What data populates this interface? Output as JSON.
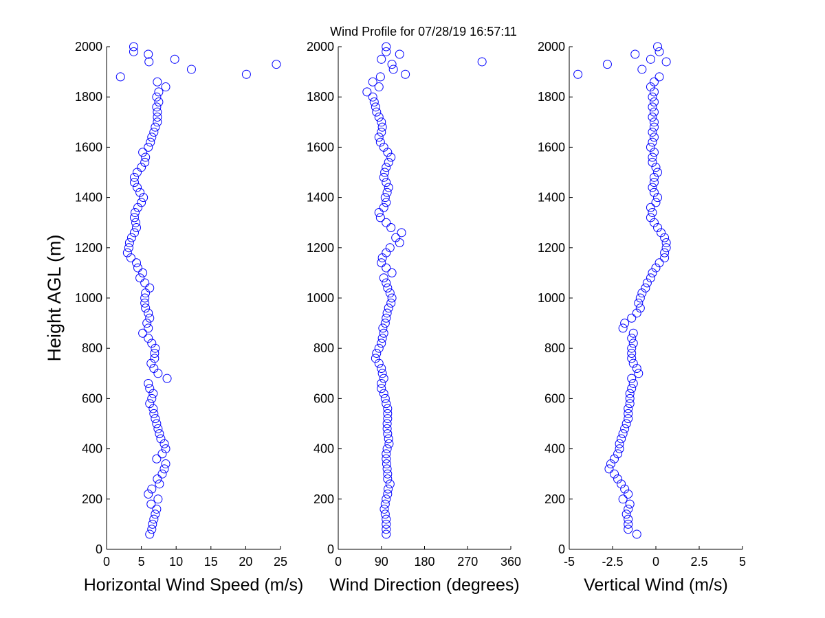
{
  "title": "Wind Profile for  07/28/19 16:57:11",
  "chart_data": [
    {
      "type": "scatter",
      "xlabel": "Horizontal Wind Speed (m/s)",
      "ylabel": "Height AGL (m)",
      "color": "#0000ff",
      "xlim": [
        0,
        25
      ],
      "xticks": [
        0,
        5,
        10,
        15,
        20,
        25
      ],
      "ylim": [
        0,
        2000
      ],
      "yticks": [
        0,
        200,
        400,
        600,
        800,
        1000,
        1200,
        1400,
        1600,
        1800,
        2000
      ],
      "x": [
        6.2,
        6.5,
        6.6,
        6.8,
        7.0,
        7.2,
        6.4,
        7.4,
        6.0,
        6.5,
        7.6,
        7.3,
        8.0,
        8.3,
        8.5,
        7.2,
        8.0,
        8.5,
        8.3,
        7.8,
        7.6,
        7.4,
        7.2,
        7.0,
        6.8,
        6.7,
        6.2,
        6.5,
        6.7,
        6.2,
        6.0,
        8.7,
        7.4,
        6.8,
        6.4,
        6.9,
        6.9,
        7.0,
        6.5,
        6.0,
        5.2,
        6.0,
        5.8,
        6.2,
        6.0,
        5.6,
        5.5,
        5.5,
        5.6,
        6.2,
        5.5,
        4.8,
        5.2,
        4.5,
        4.3,
        3.5,
        3.0,
        3.2,
        3.3,
        3.6,
        4.0,
        4.3,
        4.2,
        4.0,
        4.1,
        4.5,
        5.0,
        5.3,
        4.8,
        4.4,
        4.0,
        4.0,
        4.4,
        5.0,
        5.5,
        5.6,
        5.2,
        6.0,
        6.3,
        6.5,
        6.8,
        7.0,
        7.3,
        7.3,
        7.3,
        7.2,
        7.5,
        7.2,
        7.5,
        8.5,
        7.3,
        2.0,
        20.1,
        12.2,
        24.4,
        6.1,
        9.8,
        6.0,
        3.9,
        3.9
      ],
      "y": [
        60,
        80,
        100,
        120,
        140,
        160,
        180,
        200,
        220,
        240,
        260,
        280,
        300,
        320,
        340,
        360,
        380,
        400,
        420,
        440,
        460,
        480,
        500,
        520,
        540,
        560,
        580,
        600,
        620,
        640,
        660,
        680,
        700,
        720,
        740,
        760,
        780,
        800,
        820,
        840,
        860,
        880,
        900,
        920,
        940,
        960,
        980,
        1000,
        1020,
        1040,
        1060,
        1080,
        1100,
        1120,
        1140,
        1160,
        1180,
        1200,
        1220,
        1240,
        1260,
        1280,
        1300,
        1320,
        1340,
        1360,
        1380,
        1400,
        1420,
        1440,
        1460,
        1480,
        1500,
        1520,
        1540,
        1560,
        1580,
        1600,
        1620,
        1640,
        1660,
        1680,
        1700,
        1720,
        1740,
        1760,
        1780,
        1800,
        1820,
        1840,
        1860,
        1880,
        1890,
        1910,
        1930,
        1940,
        1950,
        1970,
        1980,
        2000
      ]
    },
    {
      "type": "scatter",
      "xlabel": "Wind Direction (degrees)",
      "color": "#0000ff",
      "xlim": [
        0,
        360
      ],
      "xticks": [
        0,
        90,
        180,
        270,
        360
      ],
      "ylim": [
        0,
        2000
      ],
      "yticks": [
        0,
        200,
        400,
        600,
        800,
        1000,
        1200,
        1400,
        1600,
        1800,
        2000
      ],
      "x": [
        100,
        100,
        100,
        100,
        98,
        96,
        98,
        100,
        103,
        104,
        108,
        103,
        103,
        102,
        101,
        100,
        100,
        102,
        106,
        105,
        103,
        102,
        102,
        103,
        103,
        103,
        100,
        98,
        95,
        90,
        90,
        95,
        92,
        90,
        85,
        78,
        80,
        85,
        90,
        92,
        95,
        93,
        98,
        100,
        102,
        105,
        110,
        112,
        108,
        103,
        100,
        95,
        112,
        100,
        90,
        92,
        100,
        108,
        128,
        120,
        132,
        110,
        100,
        88,
        85,
        95,
        100,
        98,
        102,
        105,
        100,
        95,
        97,
        100,
        105,
        110,
        103,
        95,
        88,
        85,
        90,
        92,
        90,
        85,
        80,
        78,
        75,
        72,
        60,
        85,
        72,
        88,
        140,
        115,
        112,
        300,
        90,
        128,
        100,
        100
      ],
      "y": [
        60,
        80,
        100,
        120,
        140,
        160,
        180,
        200,
        220,
        240,
        260,
        280,
        300,
        320,
        340,
        360,
        380,
        400,
        420,
        440,
        460,
        480,
        500,
        520,
        540,
        560,
        580,
        600,
        620,
        640,
        660,
        680,
        700,
        720,
        740,
        760,
        780,
        800,
        820,
        840,
        860,
        880,
        900,
        920,
        940,
        960,
        980,
        1000,
        1020,
        1040,
        1060,
        1080,
        1100,
        1120,
        1140,
        1160,
        1180,
        1200,
        1220,
        1240,
        1260,
        1280,
        1300,
        1320,
        1340,
        1360,
        1380,
        1400,
        1420,
        1440,
        1460,
        1480,
        1500,
        1520,
        1540,
        1560,
        1580,
        1600,
        1620,
        1640,
        1660,
        1680,
        1700,
        1720,
        1740,
        1760,
        1780,
        1800,
        1820,
        1840,
        1860,
        1880,
        1890,
        1910,
        1930,
        1940,
        1950,
        1970,
        1980,
        2000
      ]
    },
    {
      "type": "scatter",
      "xlabel": "Vertical Wind (m/s)",
      "color": "#0000ff",
      "xlim": [
        -5,
        5
      ],
      "xticks": [
        -5,
        -2.5,
        0,
        2.5,
        5
      ],
      "ylim": [
        0,
        2000
      ],
      "yticks": [
        0,
        200,
        400,
        600,
        800,
        1000,
        1200,
        1400,
        1600,
        1800,
        2000
      ],
      "x": [
        -1.1,
        -1.6,
        -1.6,
        -1.6,
        -1.7,
        -1.6,
        -1.5,
        -1.9,
        -1.6,
        -1.8,
        -2.0,
        -2.2,
        -2.4,
        -2.7,
        -2.6,
        -2.4,
        -2.2,
        -2.1,
        -2.1,
        -2.0,
        -1.9,
        -1.8,
        -1.7,
        -1.6,
        -1.6,
        -1.6,
        -1.5,
        -1.5,
        -1.5,
        -1.4,
        -1.3,
        -1.4,
        -1.0,
        -1.1,
        -1.3,
        -1.4,
        -1.4,
        -1.4,
        -1.3,
        -1.4,
        -1.3,
        -1.9,
        -1.8,
        -1.4,
        -1.1,
        -0.9,
        -1.0,
        -0.9,
        -0.8,
        -0.6,
        -0.5,
        -0.3,
        -0.2,
        0,
        0.2,
        0.5,
        0.5,
        0.6,
        0.6,
        0.5,
        0.3,
        0.1,
        -0.1,
        -0.3,
        -0.2,
        -0.3,
        0,
        0.1,
        -0.1,
        -0.2,
        -0.1,
        -0.1,
        0.1,
        0,
        -0.2,
        -0.2,
        -0.1,
        -0.3,
        -0.2,
        -0.1,
        -0.2,
        -0.1,
        -0.1,
        -0.2,
        -0.1,
        -0.2,
        -0.1,
        -0.2,
        -0.1,
        -0.3,
        -0.1,
        0.2,
        -4.5,
        -0.8,
        -2.8,
        0.6,
        -0.3,
        -1.2,
        0.2,
        0.1
      ],
      "y": [
        60,
        80,
        100,
        120,
        140,
        160,
        180,
        200,
        220,
        240,
        260,
        280,
        300,
        320,
        340,
        360,
        380,
        400,
        420,
        440,
        460,
        480,
        500,
        520,
        540,
        560,
        580,
        600,
        620,
        640,
        660,
        680,
        700,
        720,
        740,
        760,
        780,
        800,
        820,
        840,
        860,
        880,
        900,
        920,
        940,
        960,
        980,
        1000,
        1020,
        1040,
        1060,
        1080,
        1100,
        1120,
        1140,
        1160,
        1180,
        1200,
        1220,
        1240,
        1260,
        1280,
        1300,
        1320,
        1340,
        1360,
        1380,
        1400,
        1420,
        1440,
        1460,
        1480,
        1500,
        1520,
        1540,
        1560,
        1580,
        1600,
        1620,
        1640,
        1660,
        1680,
        1700,
        1720,
        1740,
        1760,
        1780,
        1800,
        1820,
        1840,
        1860,
        1880,
        1890,
        1910,
        1930,
        1940,
        1950,
        1970,
        1980,
        2000
      ]
    }
  ]
}
